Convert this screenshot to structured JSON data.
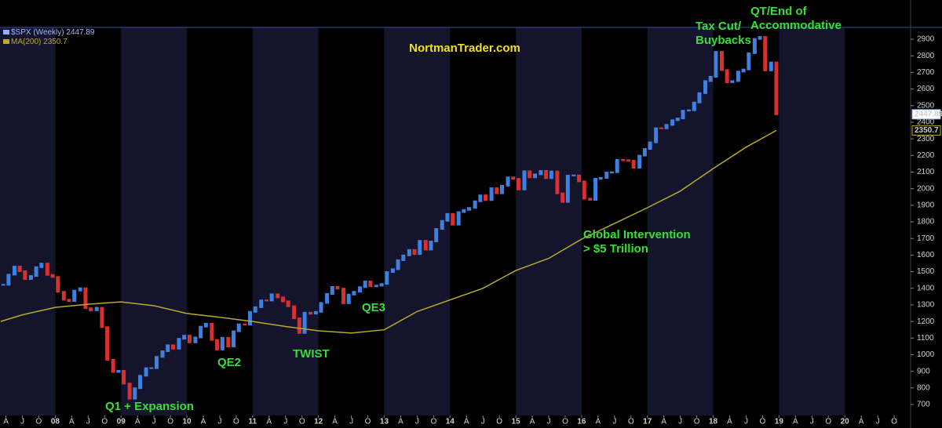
{
  "chart_data": {
    "type": "bar-line",
    "watermark": "NortmanTrader.com",
    "xlim": [
      2007.16,
      2021.0
    ],
    "ylim": [
      634,
      2971
    ],
    "yticks": [
      700,
      800,
      900,
      1000,
      1100,
      1200,
      1300,
      1400,
      1500,
      1600,
      1700,
      1800,
      1900,
      2000,
      2100,
      2200,
      2300,
      2400,
      2500,
      2600,
      2700,
      2800,
      2900
    ],
    "xticks": [
      {
        "value": 2007.25,
        "label": "A"
      },
      {
        "value": 2007.5,
        "label": "J"
      },
      {
        "value": 2007.75,
        "label": "O"
      },
      {
        "value": 2008,
        "label": "08"
      },
      {
        "value": 2008.25,
        "label": "A"
      },
      {
        "value": 2008.5,
        "label": "J"
      },
      {
        "value": 2008.75,
        "label": "O"
      },
      {
        "value": 2009,
        "label": "09"
      },
      {
        "value": 2009.25,
        "label": "A"
      },
      {
        "value": 2009.5,
        "label": "J"
      },
      {
        "value": 2009.75,
        "label": "O"
      },
      {
        "value": 2010,
        "label": "10"
      },
      {
        "value": 2010.25,
        "label": "A"
      },
      {
        "value": 2010.5,
        "label": "J"
      },
      {
        "value": 2010.75,
        "label": "O"
      },
      {
        "value": 2011,
        "label": "11"
      },
      {
        "value": 2011.25,
        "label": "A"
      },
      {
        "value": 2011.5,
        "label": "J"
      },
      {
        "value": 2011.75,
        "label": "O"
      },
      {
        "value": 2012,
        "label": "12"
      },
      {
        "value": 2012.25,
        "label": "A"
      },
      {
        "value": 2012.5,
        "label": "J"
      },
      {
        "value": 2012.75,
        "label": "O"
      },
      {
        "value": 2013,
        "label": "13"
      },
      {
        "value": 2013.25,
        "label": "A"
      },
      {
        "value": 2013.5,
        "label": "J"
      },
      {
        "value": 2013.75,
        "label": "O"
      },
      {
        "value": 2014,
        "label": "14"
      },
      {
        "value": 2014.25,
        "label": "A"
      },
      {
        "value": 2014.5,
        "label": "J"
      },
      {
        "value": 2014.75,
        "label": "O"
      },
      {
        "value": 2015,
        "label": "15"
      },
      {
        "value": 2015.25,
        "label": "A"
      },
      {
        "value": 2015.5,
        "label": "J"
      },
      {
        "value": 2015.75,
        "label": "O"
      },
      {
        "value": 2016,
        "label": "16"
      },
      {
        "value": 2016.25,
        "label": "A"
      },
      {
        "value": 2016.5,
        "label": "J"
      },
      {
        "value": 2016.75,
        "label": "O"
      },
      {
        "value": 2017,
        "label": "17"
      },
      {
        "value": 2017.25,
        "label": "A"
      },
      {
        "value": 2017.5,
        "label": "J"
      },
      {
        "value": 2017.75,
        "label": "O"
      },
      {
        "value": 2018,
        "label": "18"
      },
      {
        "value": 2018.25,
        "label": "A"
      },
      {
        "value": 2018.5,
        "label": "J"
      },
      {
        "value": 2018.75,
        "label": "O"
      },
      {
        "value": 2019,
        "label": "19"
      },
      {
        "value": 2019.25,
        "label": "A"
      },
      {
        "value": 2019.5,
        "label": "J"
      },
      {
        "value": 2019.75,
        "label": "O"
      },
      {
        "value": 2020,
        "label": "20"
      },
      {
        "value": 2020.25,
        "label": "A"
      },
      {
        "value": 2020.5,
        "label": "J"
      },
      {
        "value": 2020.75,
        "label": "O"
      }
    ],
    "band_color": "#14142c",
    "up_color": "#3f7fe0",
    "down_color": "#d83030",
    "series": [
      {
        "name": "$SPX (Weekly)",
        "last_value": 2447.89,
        "color": "#8fb0ff",
        "x": [
          2007.21,
          2007.29,
          2007.38,
          2007.46,
          2007.54,
          2007.63,
          2007.71,
          2007.79,
          2007.88,
          2007.96,
          2008.04,
          2008.13,
          2008.21,
          2008.29,
          2008.38,
          2008.46,
          2008.54,
          2008.63,
          2008.71,
          2008.79,
          2008.88,
          2008.96,
          2009.04,
          2009.13,
          2009.21,
          2009.29,
          2009.38,
          2009.46,
          2009.54,
          2009.63,
          2009.71,
          2009.79,
          2009.88,
          2009.96,
          2010.04,
          2010.13,
          2010.21,
          2010.29,
          2010.38,
          2010.46,
          2010.54,
          2010.63,
          2010.71,
          2010.79,
          2010.88,
          2010.96,
          2011.04,
          2011.13,
          2011.21,
          2011.29,
          2011.38,
          2011.46,
          2011.54,
          2011.63,
          2011.71,
          2011.79,
          2011.88,
          2011.96,
          2012.04,
          2012.13,
          2012.21,
          2012.29,
          2012.38,
          2012.46,
          2012.54,
          2012.63,
          2012.71,
          2012.79,
          2012.88,
          2012.96,
          2013.04,
          2013.13,
          2013.21,
          2013.29,
          2013.38,
          2013.46,
          2013.54,
          2013.63,
          2013.71,
          2013.79,
          2013.88,
          2013.96,
          2014.04,
          2014.13,
          2014.21,
          2014.29,
          2014.38,
          2014.46,
          2014.54,
          2014.63,
          2014.71,
          2014.79,
          2014.88,
          2014.96,
          2015.04,
          2015.13,
          2015.21,
          2015.29,
          2015.38,
          2015.46,
          2015.54,
          2015.63,
          2015.71,
          2015.79,
          2015.88,
          2015.96,
          2016.04,
          2016.13,
          2016.21,
          2016.29,
          2016.38,
          2016.46,
          2016.54,
          2016.63,
          2016.71,
          2016.79,
          2016.88,
          2016.96,
          2017.04,
          2017.13,
          2017.21,
          2017.29,
          2017.38,
          2017.46,
          2017.54,
          2017.63,
          2017.71,
          2017.79,
          2017.88,
          2017.96,
          2018.04,
          2018.13,
          2018.21,
          2018.29,
          2018.38,
          2018.46,
          2018.54,
          2018.63,
          2018.71,
          2018.79,
          2018.88,
          2018.96
        ],
        "values": [
          1421,
          1482,
          1531,
          1503,
          1455,
          1474,
          1527,
          1549,
          1481,
          1468,
          1379,
          1331,
          1323,
          1386,
          1400,
          1280,
          1267,
          1283,
          1166,
          969,
          896,
          903,
          826,
          735,
          798,
          873,
          919,
          919,
          987,
          1021,
          1057,
          1036,
          1096,
          1115,
          1074,
          1104,
          1169,
          1187,
          1089,
          1031,
          1102,
          1049,
          1141,
          1183,
          1181,
          1258,
          1286,
          1327,
          1326,
          1364,
          1345,
          1321,
          1292,
          1219,
          1131,
          1253,
          1247,
          1258,
          1312,
          1366,
          1408,
          1398,
          1310,
          1362,
          1379,
          1407,
          1441,
          1412,
          1416,
          1426,
          1498,
          1515,
          1569,
          1598,
          1631,
          1606,
          1686,
          1633,
          1682,
          1757,
          1806,
          1848,
          1783,
          1859,
          1872,
          1884,
          1924,
          1960,
          1931,
          2003,
          1972,
          2018,
          2068,
          2059,
          1995,
          2105,
          2068,
          2086,
          2107,
          2063,
          2104,
          1972,
          1920,
          2079,
          2080,
          2044,
          1940,
          1932,
          2060,
          2065,
          2097,
          2099,
          2174,
          2171,
          2168,
          2126,
          2199,
          2239,
          2279,
          2364,
          2363,
          2384,
          2412,
          2423,
          2470,
          2472,
          2519,
          2575,
          2648,
          2674,
          2824,
          2714,
          2641,
          2648,
          2705,
          2718,
          2816,
          2902,
          2914,
          2712,
          2760,
          2448
        ]
      },
      {
        "name": "MA(200)",
        "last_value": 2350.7,
        "color": "#b8aa2a",
        "x": [
          2007.17,
          2007.5,
          2008.0,
          2008.5,
          2009.0,
          2009.5,
          2010.0,
          2010.5,
          2011.0,
          2011.5,
          2012.0,
          2012.5,
          2013.0,
          2013.5,
          2014.0,
          2014.5,
          2015.0,
          2015.5,
          2016.0,
          2016.5,
          2017.0,
          2017.5,
          2018.0,
          2018.5,
          2018.96
        ],
        "values": [
          1200,
          1240,
          1285,
          1304,
          1318,
          1295,
          1248,
          1225,
          1200,
          1170,
          1144,
          1130,
          1150,
          1260,
          1330,
          1400,
          1507,
          1580,
          1696,
          1790,
          1885,
          1985,
          2121,
          2250,
          2350.7
        ]
      }
    ],
    "annotations": [
      {
        "lines": [
          "Tax Cut/",
          "Buybacks"
        ]
      },
      {
        "lines": [
          "QT/End of",
          "Accommodative"
        ]
      },
      {
        "lines": [
          "Global Intervention",
          "> $5 Trillion"
        ]
      },
      {
        "lines": [
          "QE3"
        ]
      },
      {
        "lines": [
          "QE2"
        ]
      },
      {
        "lines": [
          "TWIST"
        ]
      },
      {
        "lines": [
          "Q1 + Expansion"
        ]
      }
    ]
  }
}
